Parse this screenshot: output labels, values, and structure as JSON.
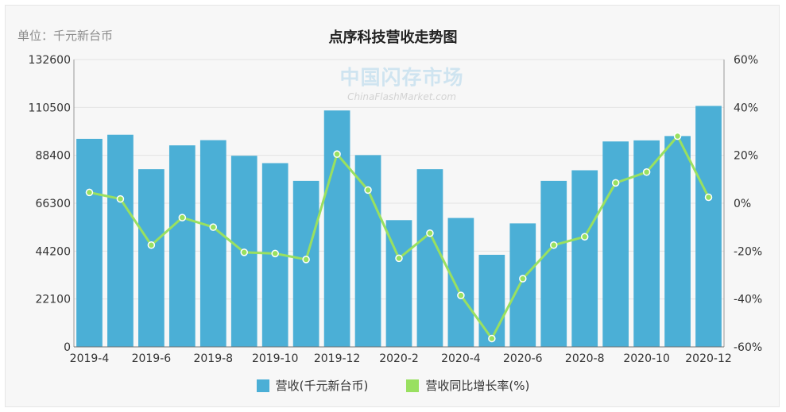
{
  "unit_label": "单位：千元新台币",
  "watermark": {
    "cn": "中国闪存市场",
    "en": "ChinaFlashMarket.com"
  },
  "colors": {
    "bar": "#4bafd6",
    "line": "#99e060",
    "grid": "#e3e3e3",
    "axis_text": "#333333"
  },
  "chart_data": {
    "type": "bar",
    "title": "点序科技营收走势图",
    "categories": [
      "2019-4",
      "2019-5",
      "2019-6",
      "2019-7",
      "2019-8",
      "2019-9",
      "2019-10",
      "2019-11",
      "2019-12",
      "2020-1",
      "2020-2",
      "2020-3",
      "2020-4",
      "2020-5",
      "2020-6",
      "2020-7",
      "2020-8",
      "2020-9",
      "2020-10",
      "2020-11",
      "2020-12"
    ],
    "x_tick_labels": [
      "2019-4",
      "2019-6",
      "2019-8",
      "2019-10",
      "2019-12",
      "2020-2",
      "2020-4",
      "2020-6",
      "2020-8",
      "2020-10",
      "2020-12"
    ],
    "series": [
      {
        "name": "营收(千元新台币)",
        "type": "bar",
        "axis": "left",
        "values": [
          96000,
          97900,
          82000,
          93000,
          95400,
          88200,
          84800,
          76600,
          109100,
          88500,
          58500,
          82000,
          59500,
          42500,
          57000,
          76600,
          81500,
          94800,
          95300,
          97300,
          111200
        ]
      },
      {
        "name": "营收同比增长率(%)",
        "type": "line",
        "axis": "right",
        "values": [
          4.5,
          1.8,
          -17.5,
          -6,
          -10,
          -20.5,
          -21,
          -23.5,
          20.5,
          5.5,
          -23,
          -12.5,
          -38.5,
          -56.5,
          -31.5,
          -17.5,
          -14,
          8.5,
          13,
          28,
          2.5
        ]
      }
    ],
    "y_left": {
      "ticks": [
        0,
        22100,
        44200,
        66300,
        88400,
        110500,
        132600
      ],
      "ylim": [
        0,
        132600
      ]
    },
    "y_right": {
      "ticks": [
        "60%",
        "40%",
        "20%",
        "0%",
        "-20%",
        "-40%",
        "-60%"
      ],
      "ylim": [
        -60,
        60
      ]
    },
    "grid": true,
    "legend": "bottom-center"
  }
}
